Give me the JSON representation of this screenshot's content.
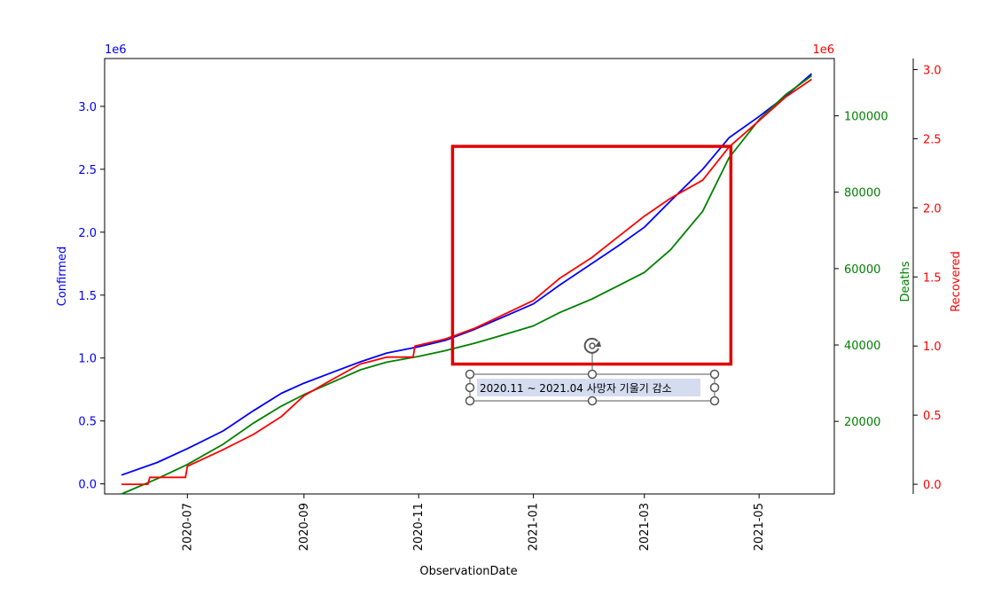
{
  "chart_data": {
    "type": "line",
    "title": "",
    "xlabel": "ObservationDate",
    "x_ticks": [
      "2020-07",
      "2020-09",
      "2020-11",
      "2021-01",
      "2021-03",
      "2021-05"
    ],
    "x_range": [
      "2020-05-18",
      "2021-06-10"
    ],
    "axes": {
      "confirmed": {
        "label": "Confirmed",
        "color": "#0000ff",
        "offset_text": "1e6",
        "ylim": [
          -0.08,
          3.38
        ],
        "ticks": [
          "0.0",
          "0.5",
          "1.0",
          "1.5",
          "2.0",
          "2.5",
          "3.0"
        ],
        "tick_values": [
          0.0,
          0.5,
          1.0,
          1.5,
          2.0,
          2.5,
          3.0
        ]
      },
      "deaths": {
        "label": "Deaths",
        "color": "#008000",
        "ylim": [
          1000,
          115000
        ],
        "ticks": [
          "20000",
          "40000",
          "60000",
          "80000",
          "100000"
        ],
        "tick_values": [
          20000,
          40000,
          60000,
          80000,
          100000
        ]
      },
      "recovered": {
        "label": "Recovered",
        "color": "#ff0000",
        "offset_text": "1e6",
        "ylim": [
          -0.07,
          3.08
        ],
        "ticks": [
          "0.0",
          "0.5",
          "1.0",
          "1.5",
          "2.0",
          "2.5",
          "3.0"
        ],
        "tick_values": [
          0.0,
          0.5,
          1.0,
          1.5,
          2.0,
          2.5,
          3.0
        ]
      }
    },
    "series": [
      {
        "name": "Confirmed",
        "axis": "confirmed",
        "color": "#0000ff",
        "points": [
          [
            "2020-05-27",
            0.07
          ],
          [
            "2020-06-15",
            0.17
          ],
          [
            "2020-07-01",
            0.28
          ],
          [
            "2020-07-20",
            0.42
          ],
          [
            "2020-08-05",
            0.58
          ],
          [
            "2020-08-20",
            0.72
          ],
          [
            "2020-09-01",
            0.8
          ],
          [
            "2020-09-15",
            0.88
          ],
          [
            "2020-10-01",
            0.97
          ],
          [
            "2020-10-15",
            1.04
          ],
          [
            "2020-11-01",
            1.09
          ],
          [
            "2020-11-15",
            1.14
          ],
          [
            "2020-12-01",
            1.23
          ],
          [
            "2020-12-15",
            1.32
          ],
          [
            "2021-01-01",
            1.43
          ],
          [
            "2021-01-15",
            1.58
          ],
          [
            "2021-02-01",
            1.75
          ],
          [
            "2021-02-15",
            1.89
          ],
          [
            "2021-03-01",
            2.04
          ],
          [
            "2021-03-15",
            2.25
          ],
          [
            "2021-04-01",
            2.5
          ],
          [
            "2021-04-15",
            2.75
          ],
          [
            "2021-05-01",
            2.92
          ],
          [
            "2021-05-15",
            3.08
          ],
          [
            "2021-05-29",
            3.26
          ]
        ]
      },
      {
        "name": "Deaths",
        "axis": "deaths",
        "color": "#008000",
        "points": [
          [
            "2020-05-27",
            1000
          ],
          [
            "2020-06-15",
            5000
          ],
          [
            "2020-07-01",
            8700
          ],
          [
            "2020-07-20",
            14000
          ],
          [
            "2020-08-05",
            19500
          ],
          [
            "2020-08-20",
            24000
          ],
          [
            "2020-09-01",
            27000
          ],
          [
            "2020-09-15",
            30000
          ],
          [
            "2020-10-01",
            33500
          ],
          [
            "2020-10-15",
            35500
          ],
          [
            "2020-11-01",
            37000
          ],
          [
            "2020-11-15",
            38500
          ],
          [
            "2020-12-01",
            40500
          ],
          [
            "2020-12-15",
            42500
          ],
          [
            "2021-01-01",
            45000
          ],
          [
            "2021-01-15",
            48500
          ],
          [
            "2021-02-01",
            52000
          ],
          [
            "2021-02-15",
            55500
          ],
          [
            "2021-03-01",
            59000
          ],
          [
            "2021-03-15",
            65000
          ],
          [
            "2021-04-01",
            75000
          ],
          [
            "2021-04-15",
            89000
          ],
          [
            "2021-05-01",
            99000
          ],
          [
            "2021-05-15",
            105500
          ],
          [
            "2021-05-29",
            110500
          ]
        ]
      },
      {
        "name": "Recovered",
        "axis": "recovered",
        "color": "#ff0000",
        "points": [
          [
            "2020-05-27",
            0.0
          ],
          [
            "2020-06-10",
            0.0
          ],
          [
            "2020-06-11",
            0.05
          ],
          [
            "2020-06-30",
            0.05
          ],
          [
            "2020-07-01",
            0.13
          ],
          [
            "2020-07-20",
            0.25
          ],
          [
            "2020-08-05",
            0.36
          ],
          [
            "2020-08-20",
            0.49
          ],
          [
            "2020-09-01",
            0.64
          ],
          [
            "2020-09-15",
            0.75
          ],
          [
            "2020-10-01",
            0.87
          ],
          [
            "2020-10-15",
            0.92
          ],
          [
            "2020-10-29",
            0.92
          ],
          [
            "2020-10-30",
            1.0
          ],
          [
            "2020-11-15",
            1.05
          ],
          [
            "2020-12-01",
            1.13
          ],
          [
            "2020-12-15",
            1.22
          ],
          [
            "2021-01-01",
            1.33
          ],
          [
            "2021-01-15",
            1.49
          ],
          [
            "2021-02-01",
            1.64
          ],
          [
            "2021-02-15",
            1.79
          ],
          [
            "2021-03-01",
            1.94
          ],
          [
            "2021-03-15",
            2.07
          ],
          [
            "2021-04-01",
            2.2
          ],
          [
            "2021-04-15",
            2.44
          ],
          [
            "2021-05-01",
            2.63
          ],
          [
            "2021-05-15",
            2.8
          ],
          [
            "2021-05-29",
            2.93
          ]
        ]
      }
    ],
    "annotation": {
      "text": "2020.11 ~ 2021.04 사망자 기울기 감소",
      "rect_color": "#e00000",
      "rect_start": "2020-11-19",
      "rect_end": "2021-04-16",
      "rect_bottom_deaths": 35000,
      "rect_top_deaths": 92000
    }
  }
}
